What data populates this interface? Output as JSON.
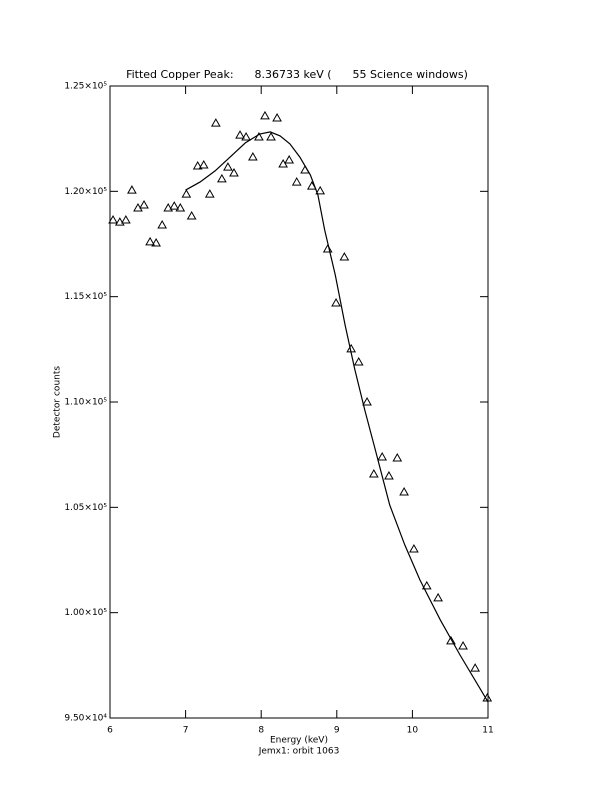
{
  "chart_data": {
    "type": "scatter",
    "title": "Fitted Copper Peak:      8.36733 keV (      55 Science windows)",
    "x_label": "Energy (keV)",
    "subtitle": "Jemx1: orbit 1063",
    "y_label": "Detector counts",
    "xlim": [
      6,
      11
    ],
    "xticks": [
      6,
      7,
      8,
      9,
      10,
      11
    ],
    "ylim": [
      95000,
      125000
    ],
    "yticks": [
      {
        "value": 95000,
        "label": "9.50×10⁴"
      },
      {
        "value": 100000,
        "label": "1.00×10⁵"
      },
      {
        "value": 105000,
        "label": "1.05×10⁵"
      },
      {
        "value": 110000,
        "label": "1.10×10⁵"
      },
      {
        "value": 115000,
        "label": "1.15×10⁵"
      },
      {
        "value": 120000,
        "label": "1.20×10⁵"
      },
      {
        "value": 125000,
        "label": "1.25×10⁵"
      }
    ],
    "series": [
      {
        "style": "triangle",
        "color": "#000000",
        "x": [
          6.04,
          6.13,
          6.21,
          6.29,
          6.37,
          6.45,
          6.53,
          6.61,
          6.69,
          6.77,
          6.85,
          6.93,
          7.01,
          7.08,
          7.16,
          7.24,
          7.32,
          7.4,
          7.48,
          7.56,
          7.64,
          7.72,
          7.8,
          7.89,
          7.97,
          8.05,
          8.13,
          8.21,
          8.29,
          8.37,
          8.47,
          8.58,
          8.67,
          8.78,
          8.88,
          8.99,
          9.1,
          9.19,
          9.29,
          9.4,
          9.49,
          9.6,
          9.69,
          9.8,
          9.89,
          10.02,
          10.19,
          10.34,
          10.51,
          10.67,
          10.83,
          10.99
        ],
        "values": [
          118640,
          118540,
          118640,
          120060,
          119210,
          119350,
          117600,
          117550,
          118400,
          119210,
          119300,
          119210,
          119870,
          118830,
          121200,
          121250,
          119870,
          123240,
          120590,
          121150,
          120870,
          122670,
          122580,
          121630,
          122580,
          123580,
          122580,
          123480,
          121300,
          121490,
          120440,
          121010,
          120250,
          120020,
          117260,
          114700,
          116880,
          112520,
          111900,
          110000,
          106580,
          107390,
          106490,
          107340,
          105730,
          103020,
          101270,
          100700,
          98660,
          98420,
          97370,
          95950
        ]
      },
      {
        "style": "line",
        "color": "#000000",
        "x": [
          7.0,
          7.19,
          7.39,
          7.59,
          7.79,
          7.98,
          8.12,
          8.25,
          8.38,
          8.51,
          8.65,
          8.75,
          8.84,
          8.98,
          9.11,
          9.24,
          9.37,
          9.51,
          9.7,
          9.9,
          10.1,
          10.37,
          10.63,
          11.0
        ],
        "values": [
          120060,
          120440,
          120970,
          121630,
          122300,
          122720,
          122820,
          122630,
          122250,
          121630,
          120780,
          119830,
          118160,
          116030,
          113650,
          111520,
          109620,
          107720,
          105110,
          103210,
          101550,
          99650,
          97990,
          95760
        ]
      }
    ]
  }
}
